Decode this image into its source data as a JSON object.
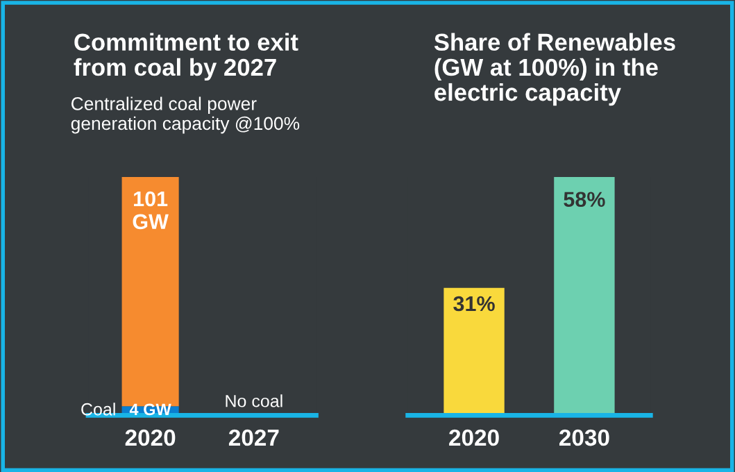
{
  "chart_data": [
    {
      "type": "bar",
      "stacked": true,
      "title": "Commitment to exit\nfrom coal by 2027",
      "subtitle": "Centralized coal power\ngeneration capacity @100%",
      "categories": [
        "2020",
        "2027"
      ],
      "series": [
        {
          "name": "Coal",
          "color": "#0a7fd0",
          "values": [
            4,
            null
          ],
          "value_labels": [
            "4 GW",
            null
          ]
        },
        {
          "color": "#f68b2f",
          "values": [
            101,
            null
          ],
          "value_labels": [
            "101\nGW",
            null
          ]
        }
      ],
      "annotations": [
        "No coal"
      ]
    },
    {
      "type": "bar",
      "title": "Share of Renewables\n(GW at 100%) in the\nelectric capacity",
      "categories": [
        "2020",
        "2030"
      ],
      "values": [
        31,
        58
      ],
      "colors": [
        "#f9d93c",
        "#6dd0b0"
      ],
      "value_labels": [
        "31%",
        "58%"
      ]
    }
  ]
}
